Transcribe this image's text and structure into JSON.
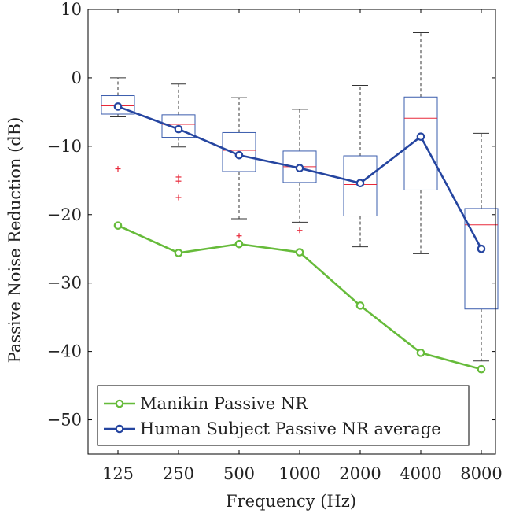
{
  "chart_data": {
    "type": "box",
    "title": "",
    "xlabel": "Frequency (Hz)",
    "ylabel": "Passive Noise Reduction (dB)",
    "categories": [
      "125",
      "250",
      "500",
      "1000",
      "2000",
      "4000",
      "8000"
    ],
    "ylim": [
      -55,
      10
    ],
    "yticks": [
      10,
      0,
      -10,
      -20,
      -30,
      -40,
      -50
    ],
    "ytick_labels": [
      "10",
      "0",
      "−10",
      "−20",
      "−30",
      "−40",
      "−50"
    ],
    "grid": false,
    "legend_position": "bottom-left",
    "boxes": [
      {
        "category": "125",
        "whisker_low": -5.7,
        "q1": -5.3,
        "median": -4.1,
        "q3": -2.6,
        "whisker_high": 0.0,
        "outliers": [
          -13.3
        ]
      },
      {
        "category": "250",
        "whisker_low": -10.1,
        "q1": -8.7,
        "median": -6.8,
        "q3": -5.4,
        "whisker_high": -0.9,
        "outliers": [
          -14.5,
          -15.1,
          -17.5
        ]
      },
      {
        "category": "500",
        "whisker_low": -20.6,
        "q1": -13.7,
        "median": -10.6,
        "q3": -8.0,
        "whisker_high": -2.9,
        "outliers": [
          -23.1
        ]
      },
      {
        "category": "1000",
        "whisker_low": -21.1,
        "q1": -15.3,
        "median": -13.0,
        "q3": -10.7,
        "whisker_high": -4.6,
        "outliers": [
          -22.3
        ]
      },
      {
        "category": "2000",
        "whisker_low": -24.7,
        "q1": -20.2,
        "median": -15.6,
        "q3": -11.4,
        "whisker_high": -1.1,
        "outliers": []
      },
      {
        "category": "4000",
        "whisker_low": -25.7,
        "q1": -16.4,
        "median": -5.9,
        "q3": -2.8,
        "whisker_high": 6.6,
        "outliers": []
      },
      {
        "category": "8000",
        "whisker_low": -41.4,
        "q1": -33.8,
        "median": -21.5,
        "q3": -19.1,
        "whisker_high": -8.1,
        "outliers": []
      }
    ],
    "series": [
      {
        "name": "Manikin Passive NR",
        "color": "#66bb3a",
        "values": [
          -21.6,
          -25.6,
          -24.3,
          -25.5,
          -33.3,
          -40.2,
          -42.6
        ]
      },
      {
        "name": "Human Subject Passive NR average",
        "color": "#2545a0",
        "values": [
          -4.2,
          -7.5,
          -11.3,
          -13.2,
          -15.4,
          -8.6,
          -25.0
        ]
      }
    ],
    "box_color": "#3a5cad",
    "median_color": "#e8283a",
    "outlier_color": "#e8283a",
    "whisker_color": "#333333"
  }
}
